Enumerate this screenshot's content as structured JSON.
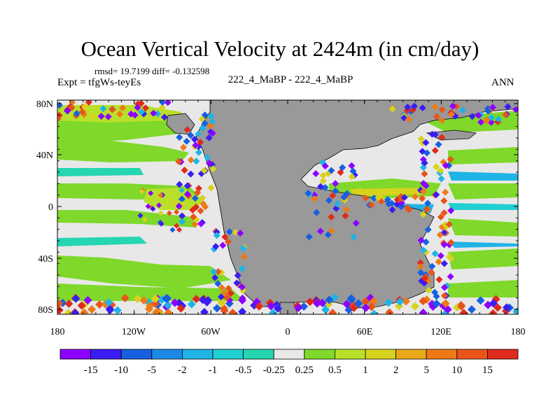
{
  "title": "Ocean Vertical Velocity at 2424m (in cm/day)",
  "stats": "rmsd= 19.7199 diff= -0.132598",
  "experiment": "Expt = tfgWs-teyEs",
  "case_label": "222_4_MaBP - 222_4_MaBP",
  "season": "ANN",
  "map": {
    "lat_ticks": [
      "80N",
      "40N",
      "0",
      "40S",
      "80S"
    ],
    "lon_ticks": [
      "180",
      "120W",
      "60W",
      "0",
      "60E",
      "120E",
      "180"
    ],
    "land_color": "#999999"
  },
  "colorbar": {
    "labels": [
      "-15",
      "-10",
      "-5",
      "-2",
      "-1",
      "-0.5",
      "-0.25",
      "0.25",
      "0.5",
      "1",
      "2",
      "5",
      "10",
      "15"
    ],
    "colors": [
      "#8b00ff",
      "#3a1df2",
      "#1660e0",
      "#1a8ae6",
      "#1fb3e6",
      "#20cfd2",
      "#25d6b0",
      "#e8e8e8",
      "#7fd82a",
      "#b8e02a",
      "#d7d21d",
      "#e8a81a",
      "#ee7a16",
      "#e8541a",
      "#e02a1c"
    ]
  }
}
